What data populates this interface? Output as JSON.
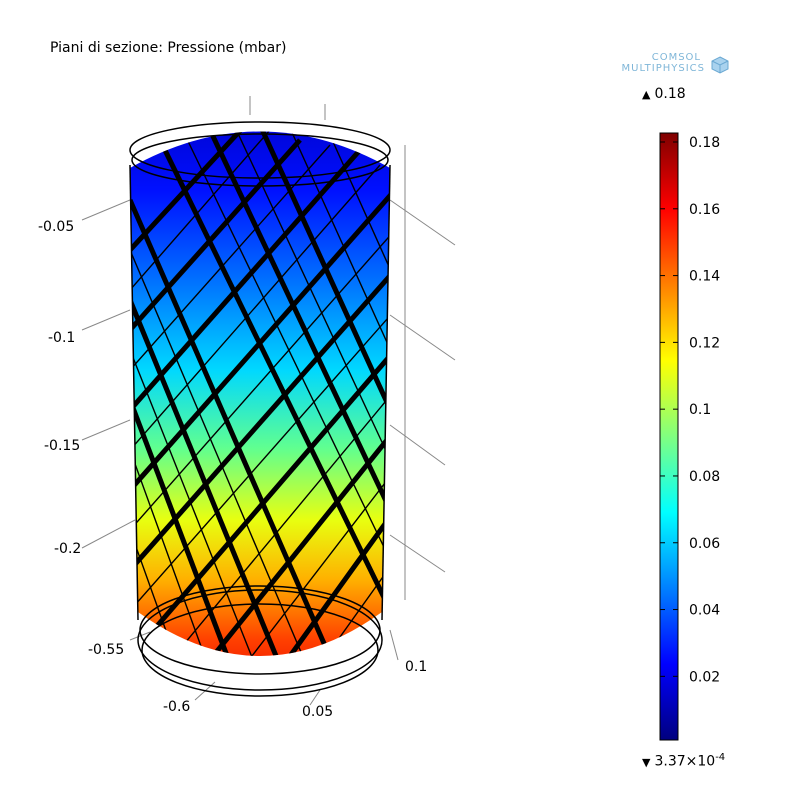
{
  "plot": {
    "title": "Piani di sezione: Pressione (mbar)",
    "logo": {
      "line1": "COMSOL",
      "line2": "MULTIPHYSICS"
    }
  },
  "colorbar": {
    "max_label": "0.18",
    "min_label": "3.37×10",
    "min_exponent": "-4",
    "ticks": [
      "0.02",
      "0.04",
      "0.06",
      "0.08",
      "0.1",
      "0.12",
      "0.14",
      "0.16",
      "0.18"
    ],
    "colormap": [
      "#00007f",
      "#0000ff",
      "#0080ff",
      "#00ffff",
      "#80ff80",
      "#ffff00",
      "#ff8000",
      "#ff0000",
      "#7f0000"
    ]
  },
  "axes": {
    "z_ticks": [
      "-0.05",
      "-0.1",
      "-0.15",
      "-0.2"
    ],
    "y_ticks": [
      "-0.55",
      "-0.6"
    ],
    "x_ticks": [
      "0.05",
      "0.1"
    ]
  }
}
